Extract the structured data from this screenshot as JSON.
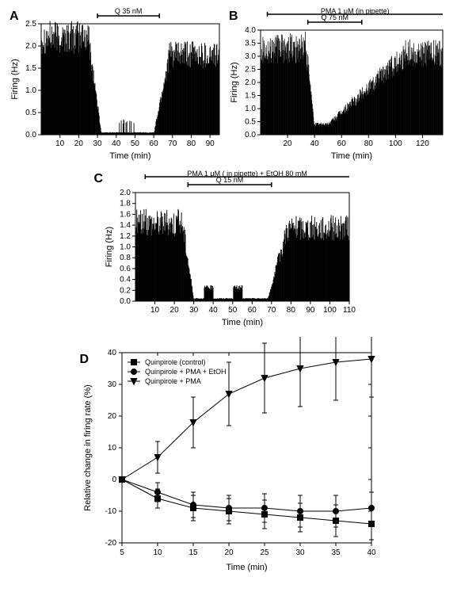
{
  "panelA": {
    "label": "A",
    "type": "bar",
    "xlabel": "Time (min)",
    "ylabel": "Firing (Hz)",
    "xlim": [
      0,
      95
    ],
    "ylim": [
      0,
      2.5
    ],
    "xtick_step": 10,
    "ytick_step": 0.5,
    "treatment_label": "Q 35 nM",
    "treatment_start": 30,
    "treatment_end": 63,
    "background_color": "#ffffff",
    "bar_color": "#000000",
    "axis_fontsize": 11,
    "tick_fontsize": 10
  },
  "panelB": {
    "label": "B",
    "type": "bar",
    "xlabel": "Time (min)",
    "ylabel": "Firing (Hz)",
    "xlim": [
      0,
      135
    ],
    "ylim": [
      0,
      4.0
    ],
    "xtick_step": 20,
    "ytick_step": 0.5,
    "treatment_label": "Q 75 nM",
    "treatment_start": 35,
    "treatment_end": 75,
    "top_label": "PMA 1 μM (in pipette)",
    "top_start": 5,
    "top_end": 135,
    "background_color": "#ffffff",
    "bar_color": "#000000",
    "axis_fontsize": 11,
    "tick_fontsize": 10
  },
  "panelC": {
    "label": "C",
    "type": "bar",
    "xlabel": "Time (min)",
    "ylabel": "Firing (Hz)",
    "xlim": [
      0,
      110
    ],
    "ylim": [
      0,
      2.0
    ],
    "xtick_step": 10,
    "ytick_step": 0.2,
    "treatment_label": "Q 15 nM",
    "treatment_start": 27,
    "treatment_end": 70,
    "top_label": "PMA 1 μM ( in pipette) + EtOH 80 mM",
    "top_start": 5,
    "top_end": 110,
    "background_color": "#ffffff",
    "bar_color": "#000000",
    "axis_fontsize": 11,
    "tick_fontsize": 10
  },
  "panelD": {
    "label": "D",
    "type": "line",
    "xlabel": "Time (min)",
    "ylabel": "Relative change in firing rate (%)",
    "xlim": [
      5,
      40
    ],
    "ylim": [
      -20,
      40
    ],
    "xtick_step": 5,
    "ytick_step": 10,
    "background_color": "#ffffff",
    "axis_fontsize": 11,
    "tick_fontsize": 10,
    "series": [
      {
        "name": "Quinpirole (control)",
        "marker": "square",
        "color": "#000000",
        "x": [
          5,
          10,
          15,
          20,
          25,
          30,
          35,
          40
        ],
        "y": [
          0,
          -6,
          -9,
          -10,
          -11,
          -12,
          -13,
          -14
        ],
        "err": [
          0,
          3,
          4,
          4,
          4.5,
          4.5,
          5,
          5
        ]
      },
      {
        "name": "Quinpirole + PMA + EtOH",
        "marker": "circle",
        "color": "#000000",
        "x": [
          5,
          10,
          15,
          20,
          25,
          30,
          35,
          40
        ],
        "y": [
          0,
          -4,
          -8,
          -9,
          -9,
          -10,
          -10,
          -9
        ],
        "err": [
          0,
          3,
          4,
          4,
          4.5,
          5,
          5,
          5
        ]
      },
      {
        "name": "Quinpirole + PMA",
        "marker": "triangle",
        "color": "#000000",
        "x": [
          5,
          10,
          15,
          20,
          25,
          30,
          35,
          40
        ],
        "y": [
          0,
          7,
          18,
          27,
          32,
          35,
          37,
          38
        ],
        "err": [
          0,
          5,
          8,
          10,
          11,
          12,
          12,
          12
        ]
      }
    ]
  }
}
